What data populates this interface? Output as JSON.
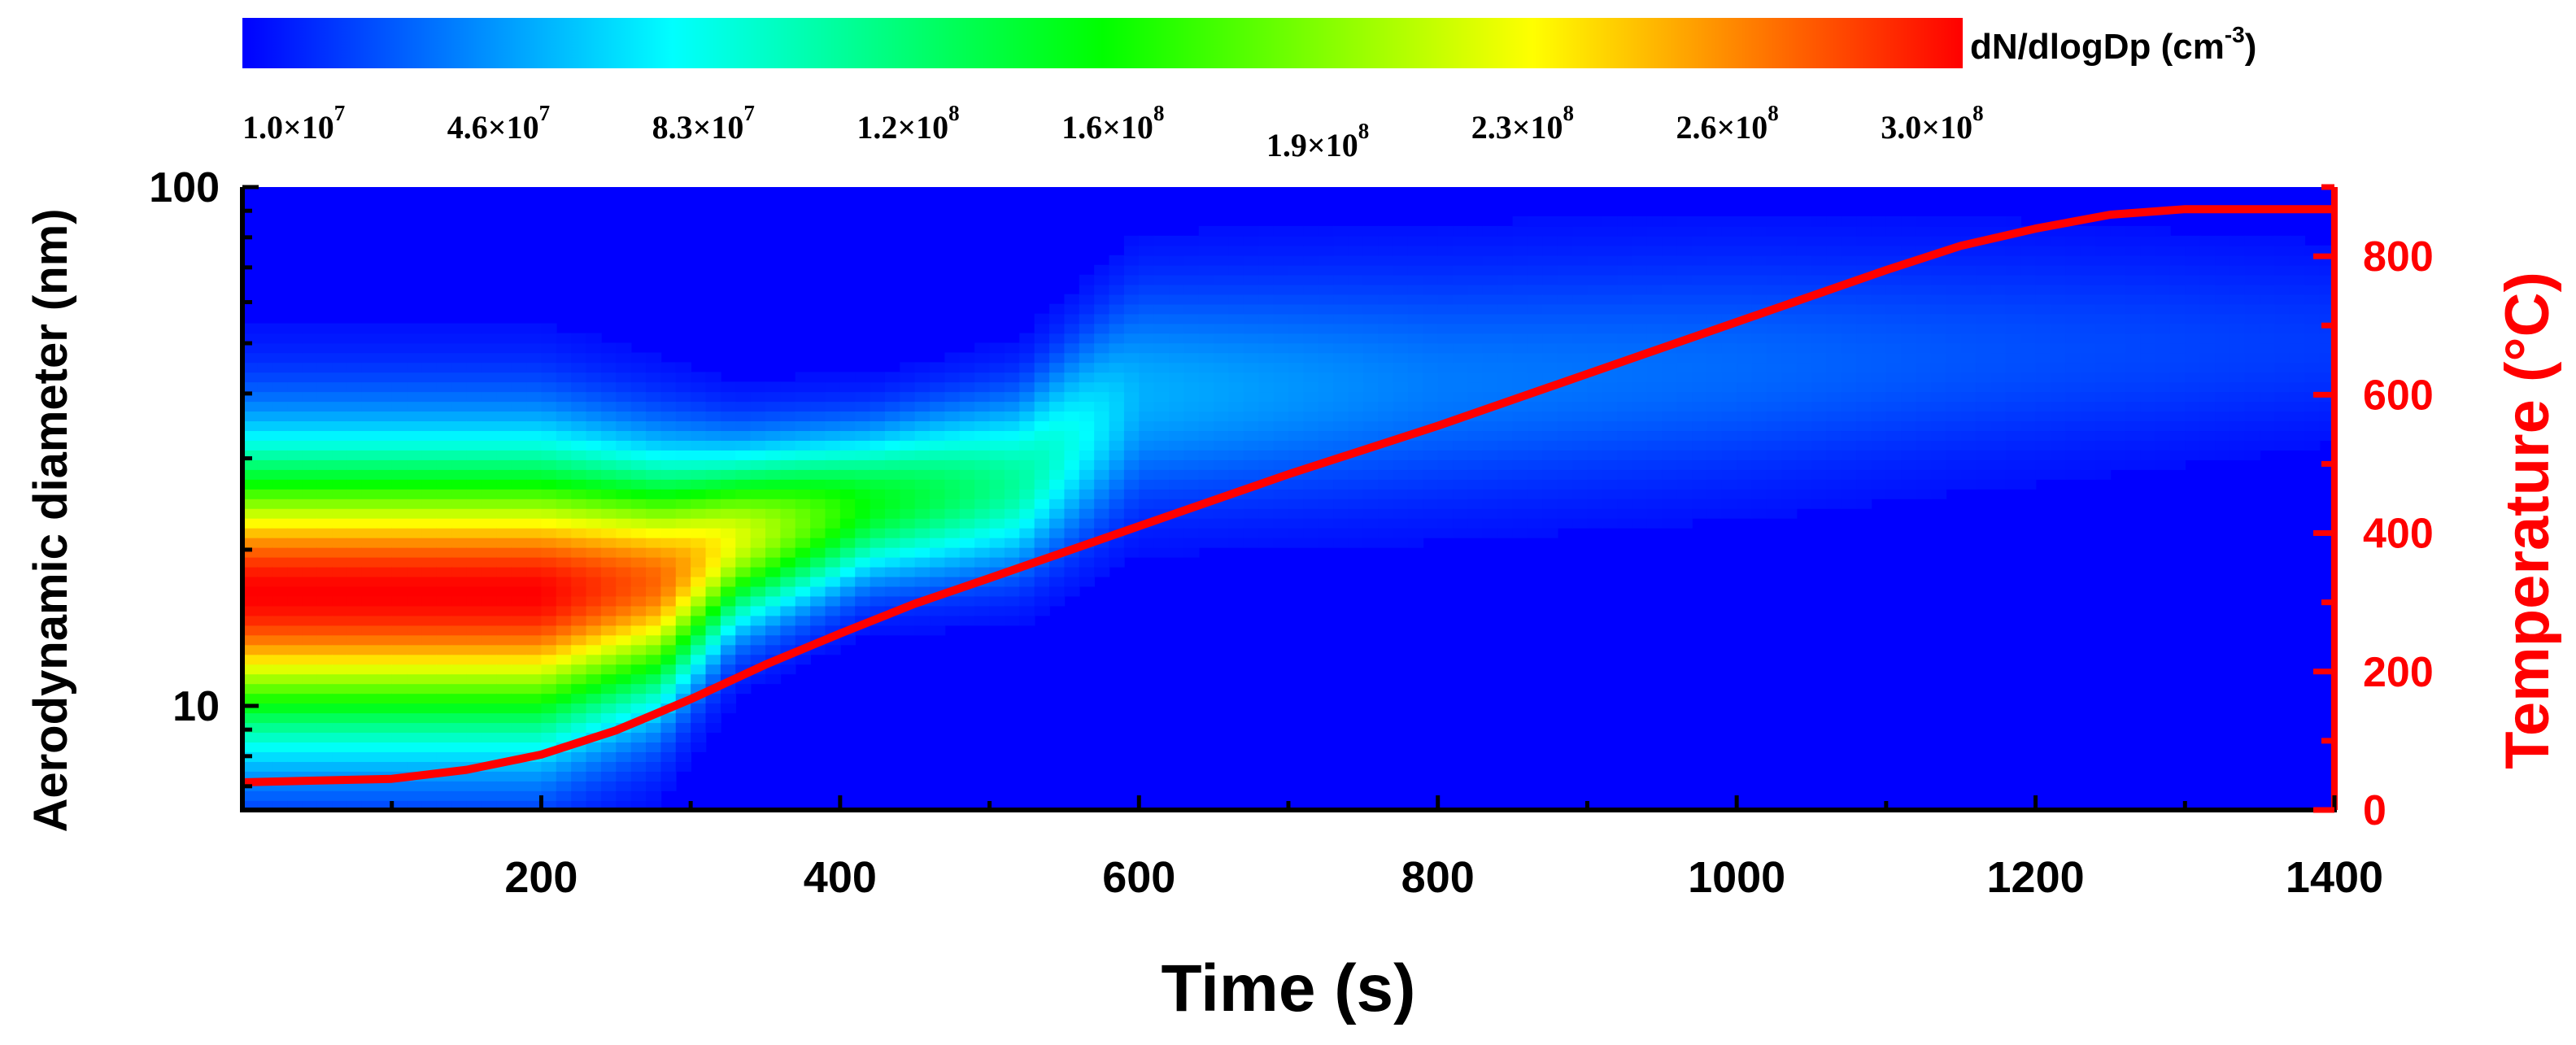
{
  "chart_data": {
    "type": "heatmap",
    "xlabel": "Time (s)",
    "ylabel": "Aerodynamic diameter (nm)",
    "y2label": "Temperature (°C)",
    "colorbar_label": "dN/dlogDp (cm-3)",
    "colorbar_label_parts": {
      "main": "dN/dlogDp (cm",
      "sup": "-3",
      "tail": ")"
    },
    "colorbar_ticks": [
      {
        "mantissa": "1.0×10",
        "exp": "7",
        "value": 10000000.0
      },
      {
        "mantissa": "4.6×10",
        "exp": "7",
        "value": 46000000.0
      },
      {
        "mantissa": "8.3×10",
        "exp": "7",
        "value": 83000000.0
      },
      {
        "mantissa": "1.2×10",
        "exp": "8",
        "value": 120000000.0
      },
      {
        "mantissa": "1.6×10",
        "exp": "8",
        "value": 160000000.0
      },
      {
        "mantissa": "1.9×10",
        "exp": "8",
        "value": 190000000.0
      },
      {
        "mantissa": "2.3×10",
        "exp": "8",
        "value": 230000000.0
      },
      {
        "mantissa": "2.6×10",
        "exp": "8",
        "value": 260000000.0
      },
      {
        "mantissa": "3.0×10",
        "exp": "8",
        "value": 300000000.0
      }
    ],
    "colorbar_range": [
      10000000.0,
      300000000.0
    ],
    "colormap": [
      "#0000ff",
      "#00ffff",
      "#00ff00",
      "#ffff00",
      "#ff0000"
    ],
    "xlim": [
      0,
      1400
    ],
    "ylim": [
      6.3,
      100
    ],
    "yscale": "log",
    "y2lim": [
      0,
      900
    ],
    "x_ticks": [
      200,
      400,
      600,
      800,
      1000,
      1200,
      1400
    ],
    "x_tick_labels": [
      "200",
      "400",
      "600",
      "800",
      "1000",
      "1200",
      "1400"
    ],
    "y_ticks": [
      10,
      100
    ],
    "y_tick_labels": [
      "10",
      "100"
    ],
    "y2_ticks": [
      0,
      200,
      400,
      600,
      800
    ],
    "y2_tick_labels": [
      "0",
      "200",
      "400",
      "600",
      "800"
    ],
    "heatmap_bands": [
      {
        "t": 0,
        "center_nm": 16.5,
        "sigma_log10": 0.18,
        "peak": 300000000.0
      },
      {
        "t": 200,
        "center_nm": 16.5,
        "sigma_log10": 0.18,
        "peak": 300000000.0
      },
      {
        "t": 280,
        "center_nm": 17.5,
        "sigma_log10": 0.15,
        "peak": 270000000.0
      },
      {
        "t": 330,
        "center_nm": 21.0,
        "sigma_log10": 0.11,
        "peak": 220000000.0
      },
      {
        "t": 420,
        "center_nm": 24.5,
        "sigma_log10": 0.095,
        "peak": 150000000.0
      },
      {
        "t": 520,
        "center_nm": 27.0,
        "sigma_log10": 0.11,
        "peak": 110000000.0
      },
      {
        "t": 600,
        "center_nm": 40.0,
        "sigma_log10": 0.14,
        "peak": 60000000.0
      },
      {
        "t": 800,
        "center_nm": 42.0,
        "sigma_log10": 0.15,
        "peak": 45000000.0
      },
      {
        "t": 1000,
        "center_nm": 45.0,
        "sigma_log10": 0.15,
        "peak": 40000000.0
      },
      {
        "t": 1200,
        "center_nm": 48.0,
        "sigma_log10": 0.14,
        "peak": 32000000.0
      },
      {
        "t": 1400,
        "center_nm": 50.0,
        "sigma_log10": 0.12,
        "peak": 26000000.0
      }
    ],
    "series": [
      {
        "name": "Temperature",
        "axis": "right",
        "color": "#ff0000",
        "x": [
          0,
          100,
          150,
          200,
          250,
          300,
          350,
          400,
          450,
          500,
          600,
          700,
          800,
          900,
          1000,
          1100,
          1150,
          1200,
          1250,
          1300,
          1350,
          1400
        ],
        "y": [
          40,
          45,
          58,
          80,
          115,
          160,
          210,
          255,
          298,
          335,
          410,
          485,
          555,
          630,
          705,
          780,
          815,
          840,
          860,
          868,
          868,
          868
        ]
      }
    ]
  }
}
